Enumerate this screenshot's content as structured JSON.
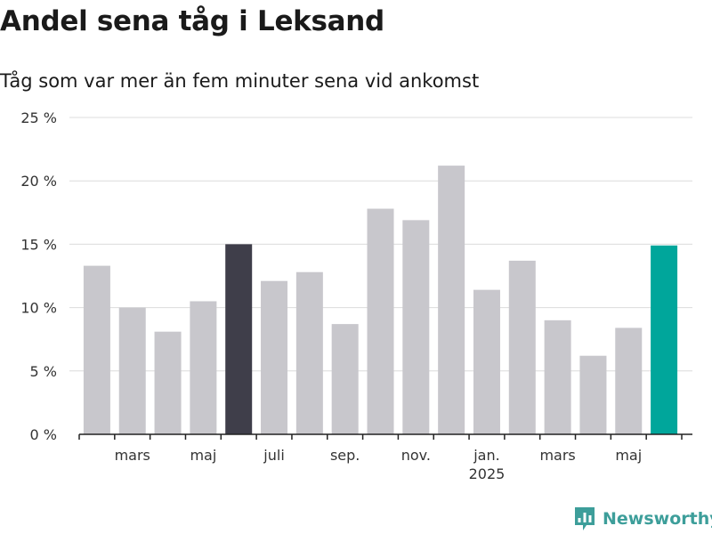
{
  "title": "Andel sena tåg i Leksand",
  "subtitle": "Tåg som var mer än fem minuter sena vid ankomst",
  "brand": {
    "name": "Newsworthy",
    "icon": "newsworthy-logo-icon"
  },
  "colors": {
    "bar": "#c8c7cc",
    "highlight_dark": "#3f3e4a",
    "highlight_accent": "#00a69b",
    "grid": "#dcdcdc",
    "axis": "#222222"
  },
  "chart_data": {
    "type": "bar",
    "title": "Andel sena tåg i Leksand",
    "subtitle": "Tåg som var mer än fem minuter sena vid ankomst",
    "values": [
      13.3,
      10.0,
      8.1,
      10.5,
      15.0,
      12.1,
      12.8,
      8.7,
      17.8,
      16.9,
      21.2,
      11.4,
      13.7,
      9.0,
      6.2,
      8.4,
      14.9
    ],
    "bar_colors": [
      "#c8c7cc",
      "#c8c7cc",
      "#c8c7cc",
      "#c8c7cc",
      "#3f3e4a",
      "#c8c7cc",
      "#c8c7cc",
      "#c8c7cc",
      "#c8c7cc",
      "#c8c7cc",
      "#c8c7cc",
      "#c8c7cc",
      "#c8c7cc",
      "#c8c7cc",
      "#c8c7cc",
      "#c8c7cc",
      "#00a69b"
    ],
    "x_tick_labels": [
      {
        "bar": 1.5,
        "label": "mars"
      },
      {
        "bar": 3.5,
        "label": "maj"
      },
      {
        "bar": 5.5,
        "label": "juli"
      },
      {
        "bar": 7.5,
        "label": "sep."
      },
      {
        "bar": 9.5,
        "label": "nov."
      },
      {
        "bar": 11.5,
        "label": "jan.",
        "sublabel": "2025"
      },
      {
        "bar": 13.5,
        "label": "mars"
      },
      {
        "bar": 15.5,
        "label": "maj"
      }
    ],
    "y_ticks": [
      {
        "value": 0,
        "label": "0 %"
      },
      {
        "value": 5,
        "label": "5 %"
      },
      {
        "value": 10,
        "label": "10 %"
      },
      {
        "value": 15,
        "label": "15 %"
      },
      {
        "value": 20,
        "label": "20 %"
      },
      {
        "value": 25,
        "label": "25 %"
      }
    ],
    "ylim": [
      0,
      25
    ],
    "grid": true,
    "legend": "none"
  }
}
